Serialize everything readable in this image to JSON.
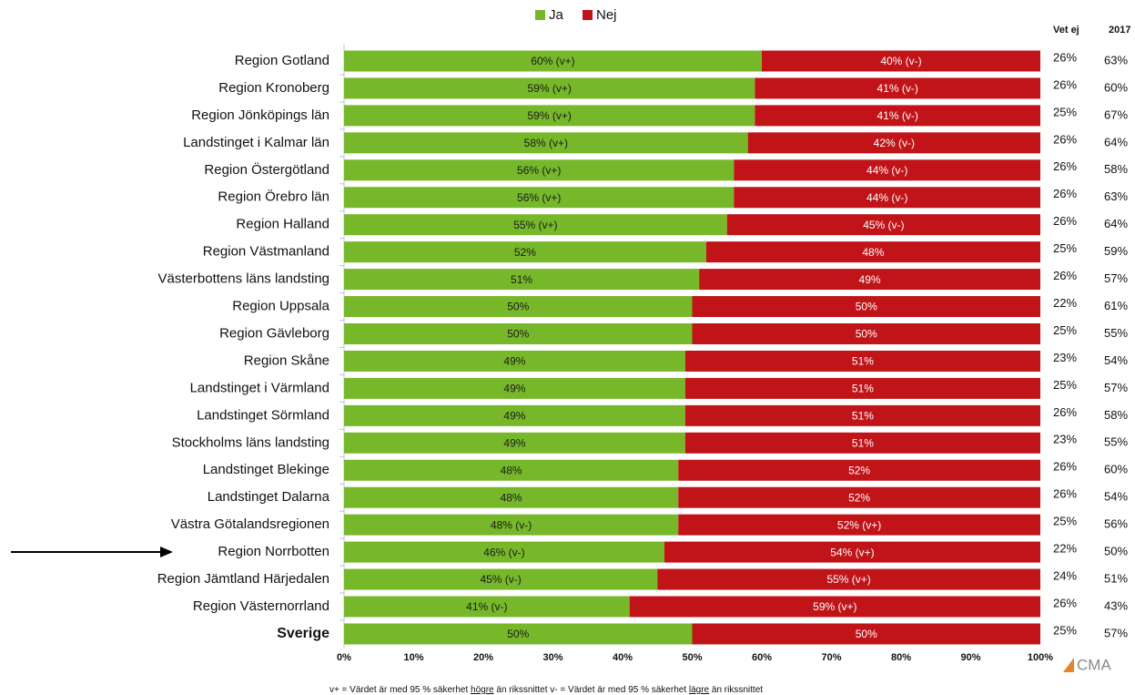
{
  "chart_data": {
    "type": "bar",
    "orientation": "horizontal",
    "stacked": true,
    "categories": [
      "Region Gotland",
      "Region Kronoberg",
      "Region Jönköpings län",
      "Landstinget i Kalmar län",
      "Region Östergötland",
      "Region Örebro län",
      "Region Halland",
      "Region Västmanland",
      "Västerbottens läns landsting",
      "Region Uppsala",
      "Region Gävleborg",
      "Region Skåne",
      "Landstinget i Värmland",
      "Landstinget Sörmland",
      "Stockholms läns landsting",
      "Landstinget Blekinge",
      "Landstinget Dalarna",
      "Västra Götalandsregionen",
      "Region Norrbotten",
      "Region Jämtland Härjedalen",
      "Region Västernorrland",
      "Sverige"
    ],
    "series": [
      {
        "name": "Ja",
        "color": "#77b82a",
        "values": [
          60,
          59,
          59,
          58,
          56,
          56,
          55,
          52,
          51,
          50,
          50,
          49,
          49,
          49,
          49,
          48,
          48,
          48,
          46,
          45,
          41,
          50
        ],
        "value_labels": [
          "60% (v+)",
          "59% (v+)",
          "59% (v+)",
          "58% (v+)",
          "56% (v+)",
          "56% (v+)",
          "55% (v+)",
          "52%",
          "51%",
          "50%",
          "50%",
          "49%",
          "49%",
          "49%",
          "49%",
          "48%",
          "48%",
          "48% (v-)",
          "46% (v-)",
          "45% (v-)",
          "41% (v-)",
          "50%"
        ]
      },
      {
        "name": "Nej",
        "color": "#c01418",
        "values": [
          40,
          41,
          41,
          42,
          44,
          44,
          45,
          48,
          49,
          50,
          50,
          51,
          51,
          51,
          51,
          52,
          52,
          52,
          54,
          55,
          59,
          50
        ],
        "value_labels": [
          "40% (v-)",
          "41% (v-)",
          "41% (v-)",
          "42% (v-)",
          "44% (v-)",
          "44% (v-)",
          "45% (v-)",
          "48%",
          "49%",
          "50%",
          "50%",
          "51%",
          "51%",
          "51%",
          "51%",
          "52%",
          "52%",
          "52% (v+)",
          "54% (v+)",
          "55% (v+)",
          "59% (v+)",
          "50%"
        ]
      }
    ],
    "columns": [
      {
        "name": "Vet ej",
        "values": [
          26,
          26,
          25,
          26,
          26,
          26,
          26,
          25,
          26,
          22,
          25,
          23,
          25,
          26,
          23,
          26,
          26,
          25,
          22,
          24,
          26,
          25
        ],
        "value_labels": [
          "26%",
          "26%",
          "25%",
          "26%",
          "26%",
          "26%",
          "26%",
          "25%",
          "26%",
          "22%",
          "25%",
          "23%",
          "25%",
          "26%",
          "23%",
          "26%",
          "26%",
          "25%",
          "22%",
          "24%",
          "26%",
          "25%"
        ]
      },
      {
        "name": "2017",
        "values": [
          63,
          60,
          67,
          64,
          58,
          63,
          64,
          59,
          57,
          61,
          55,
          54,
          57,
          58,
          55,
          60,
          54,
          56,
          50,
          51,
          43,
          57
        ],
        "value_labels": [
          "63%",
          "60%",
          "67%",
          "64%",
          "58%",
          "63%",
          "64%",
          "59%",
          "57%",
          "61%",
          "55%",
          "54%",
          "57%",
          "58%",
          "55%",
          "60%",
          "54%",
          "56%",
          "50%",
          "51%",
          "43%",
          "57%"
        ]
      }
    ],
    "xlim": [
      0,
      100
    ],
    "xticks": [
      {
        "value": 0,
        "label": "0%"
      },
      {
        "value": 10,
        "label": "10%"
      },
      {
        "value": 20,
        "label": "20%"
      },
      {
        "value": 30,
        "label": "30%"
      },
      {
        "value": 40,
        "label": "40%"
      },
      {
        "value": 50,
        "label": "50%"
      },
      {
        "value": 60,
        "label": "60%"
      },
      {
        "value": 70,
        "label": "70%"
      },
      {
        "value": 80,
        "label": "80%"
      },
      {
        "value": 90,
        "label": "90%"
      },
      {
        "value": 100,
        "label": "100%"
      }
    ],
    "footnote": [
      "v+ = Värdet är med 95 % säkerhet ",
      "högre",
      " än rikssnittet v-  = Värdet är med 95 % säkerhet ",
      "lägre",
      " än rikssnittet"
    ],
    "logo": "CMA"
  }
}
